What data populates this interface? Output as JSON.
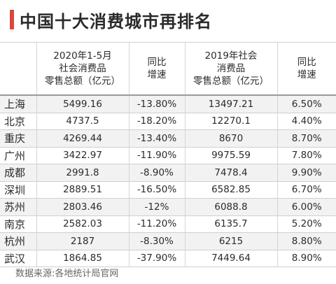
{
  "title": "中国十大消费城市再排名",
  "headers": {
    "col1": [
      "2020年1-5月",
      "社会消费品",
      "零售总额（亿元）"
    ],
    "col2": [
      "同比",
      "增速"
    ],
    "col3": [
      "2019年社会",
      "消费品",
      "零售总额（亿元）"
    ],
    "col4": [
      "同比",
      "增速"
    ]
  },
  "rows": [
    {
      "city": "上海",
      "retail_2020": "5499.16",
      "growth_2020": "-13.80%",
      "retail_2019": "13497.21",
      "growth_2019": "6.50%"
    },
    {
      "city": "北京",
      "retail_2020": "4737.5",
      "growth_2020": "-18.20%",
      "retail_2019": "12270.1",
      "growth_2019": "4.40%"
    },
    {
      "city": "重庆",
      "retail_2020": "4269.44",
      "growth_2020": "-13.40%",
      "retail_2019": "8670",
      "growth_2019": "8.70%"
    },
    {
      "city": "广州",
      "retail_2020": "3422.97",
      "growth_2020": "-11.90%",
      "retail_2019": "9975.59",
      "growth_2019": "7.80%"
    },
    {
      "city": "成都",
      "retail_2020": "2991.8",
      "growth_2020": "-8.90%",
      "retail_2019": "7478.4",
      "growth_2019": "9.90%"
    },
    {
      "city": "深圳",
      "retail_2020": "2889.51",
      "growth_2020": "-16.50%",
      "retail_2019": "6582.85",
      "growth_2019": "6.70%"
    },
    {
      "city": "苏州",
      "retail_2020": "2803.46",
      "growth_2020": "-12%",
      "retail_2019": "6088.8",
      "growth_2019": "6.00%"
    },
    {
      "city": "南京",
      "retail_2020": "2582.03",
      "growth_2020": "-11.20%",
      "retail_2019": "6135.7",
      "growth_2019": "5.20%"
    },
    {
      "city": "杭州",
      "retail_2020": "2187",
      "growth_2020": "-8.30%",
      "retail_2019": "6215",
      "growth_2019": "8.80%"
    },
    {
      "city": "武汉",
      "retail_2020": "1864.85",
      "growth_2020": "-37.90%",
      "retail_2019": "7449.64",
      "growth_2019": "8.90%"
    }
  ],
  "source": "数据来源:各地统计局官网",
  "colors": {
    "accent": "#d9473b",
    "row_alt": "#f2f2f2",
    "text": "#2b2b2b"
  }
}
